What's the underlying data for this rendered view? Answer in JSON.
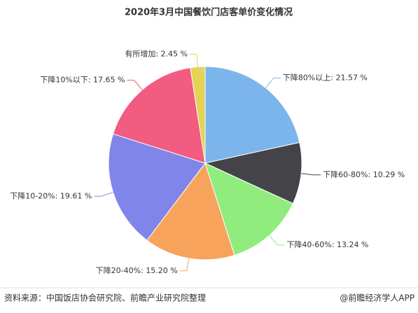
{
  "chart_data": {
    "type": "pie",
    "title": "2020年3月中国餐饮门店客单价变化情况",
    "values": [
      21.57,
      10.29,
      13.24,
      15.2,
      19.61,
      17.65,
      2.45
    ],
    "value_labels": [
      "下降80%以上: 21.57 %",
      "下降60-80%: 10.29 %",
      "下降40-60%: 13.24 %",
      "下降20-40%: 15.20 %",
      "下降10-20%: 19.61 %",
      "下降10%以下: 17.65 %",
      "有所增加: 2.45 %"
    ],
    "colors": [
      "#7cb5ec",
      "#434348",
      "#90ed7d",
      "#f7a35c",
      "#8085e9",
      "#f15c80",
      "#e4d354"
    ],
    "source": "资料来源：中国饭店协会研究院、前瞻产业研究院整理",
    "brand": "@前瞻经济学人APP"
  }
}
